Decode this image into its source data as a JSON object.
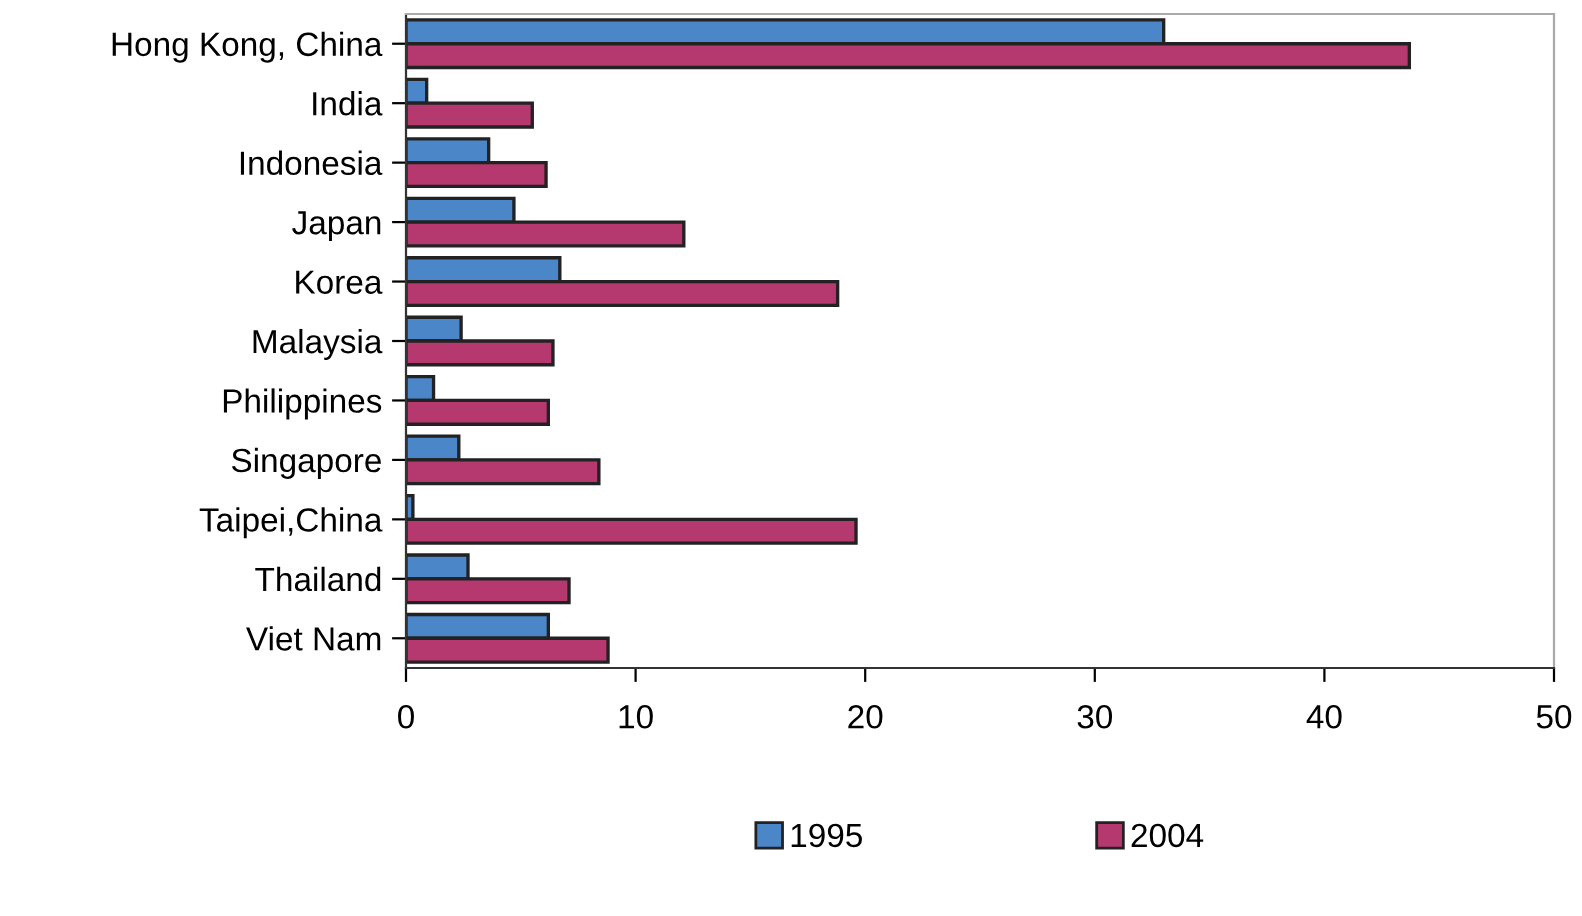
{
  "chart_data": {
    "type": "bar",
    "orientation": "horizontal",
    "categories": [
      "Hong Kong, China",
      "India",
      "Indonesia",
      "Japan",
      "Korea",
      "Malaysia",
      "Philippines",
      "Singapore",
      "Taipei,China",
      "Thailand",
      "Viet Nam"
    ],
    "series": [
      {
        "name": "1995",
        "color": "#4a86c8",
        "values": [
          33.0,
          0.9,
          3.6,
          4.7,
          6.7,
          2.4,
          1.2,
          2.3,
          0.3,
          2.7,
          6.2
        ]
      },
      {
        "name": "2004",
        "color": "#b5396e",
        "values": [
          43.7,
          5.5,
          6.1,
          12.1,
          18.8,
          6.4,
          6.2,
          8.4,
          19.6,
          7.1,
          8.8
        ]
      }
    ],
    "xlim": [
      0,
      50
    ],
    "xticks": [
      0,
      10,
      20,
      30,
      40,
      50
    ],
    "grid": false,
    "legend": "bottom"
  }
}
